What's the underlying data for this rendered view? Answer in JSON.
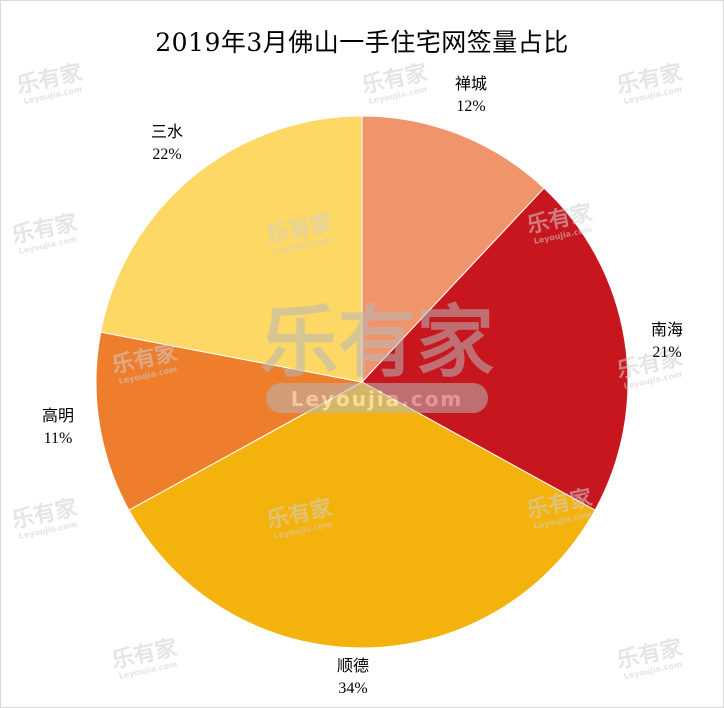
{
  "chart_data": {
    "type": "pie",
    "title": "2019年3月佛山一手住宅网签量占比",
    "slices": [
      {
        "name": "禅城",
        "value": 12,
        "label": "12%",
        "color": "#F0956B"
      },
      {
        "name": "南海",
        "value": 21,
        "label": "21%",
        "color": "#C8161E"
      },
      {
        "name": "顺德",
        "value": 34,
        "label": "34%",
        "color": "#F4B30C"
      },
      {
        "name": "高明",
        "value": 11,
        "label": "11%",
        "color": "#EE7D2C"
      },
      {
        "name": "三水",
        "value": 22,
        "label": "22%",
        "color": "#FDD865"
      }
    ],
    "start_angle": "12 o'clock",
    "direction": "clockwise",
    "legend": "none"
  },
  "watermark": {
    "text": "乐有家",
    "subtext": "Leyoujia.com"
  }
}
